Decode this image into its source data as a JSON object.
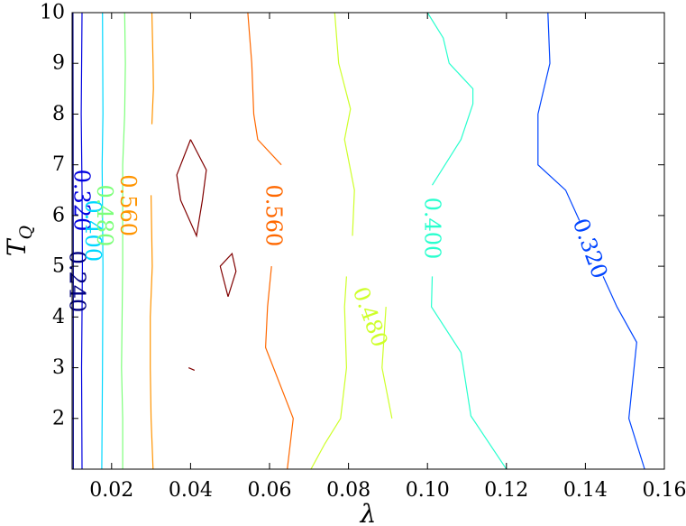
{
  "chart_data": {
    "type": "contour",
    "xlabel": "λ",
    "ylabel": "T",
    "ylabel_sub": "Q",
    "xlim": [
      0.01,
      0.16
    ],
    "ylim": [
      1,
      10
    ],
    "x_ticks": [
      {
        "value": 0.02,
        "label": "0.02"
      },
      {
        "value": 0.04,
        "label": "0.04"
      },
      {
        "value": 0.06,
        "label": "0.06"
      },
      {
        "value": 0.08,
        "label": "0.08"
      },
      {
        "value": 0.1,
        "label": "0.10"
      },
      {
        "value": 0.12,
        "label": "0.12"
      },
      {
        "value": 0.14,
        "label": "0.14"
      },
      {
        "value": 0.16,
        "label": "0.16"
      }
    ],
    "y_ticks": [
      {
        "value": 2,
        "label": "2"
      },
      {
        "value": 3,
        "label": "3"
      },
      {
        "value": 4,
        "label": "4"
      },
      {
        "value": 5,
        "label": "5"
      },
      {
        "value": 6,
        "label": "6"
      },
      {
        "value": 7,
        "label": "7"
      },
      {
        "value": 8,
        "label": "8"
      },
      {
        "value": 9,
        "label": "9"
      },
      {
        "value": 10,
        "label": "10"
      }
    ],
    "contours": [
      {
        "level": "0.240",
        "color": "#000080",
        "lines": [
          [
            [
              0.0103,
              1
            ],
            [
              0.0103,
              5
            ],
            [
              0.0102,
              10
            ]
          ]
        ],
        "labels": [
          {
            "text": "0.240",
            "x": 0.0112,
            "y": 4.7,
            "angle": 90
          }
        ]
      },
      {
        "level": "0.320",
        "color": "#0000e0",
        "lines": [
          [
            [
              0.0125,
              1
            ],
            [
              0.0124,
              3
            ],
            [
              0.0126,
              5
            ],
            [
              0.0125,
              6.5
            ],
            [
              0.0123,
              8
            ],
            [
              0.0125,
              10
            ]
          ]
        ],
        "labels": [
          {
            "text": "0.320",
            "x": 0.0124,
            "y": 6.3,
            "angle": 90
          }
        ]
      },
      {
        "level": "0.320",
        "color": "#0044ff",
        "lines": [
          [
            [
              0.155,
              1
            ],
            [
              0.151,
              2
            ],
            [
              0.153,
              3.5
            ],
            [
              0.148,
              4.2
            ],
            [
              0.1445,
              4.8
            ]
          ],
          [
            [
              0.1385,
              5.9
            ],
            [
              0.135,
              6.5
            ],
            [
              0.128,
              7
            ],
            [
              0.128,
              8
            ],
            [
              0.1295,
              8.5
            ],
            [
              0.131,
              9
            ],
            [
              0.1305,
              10
            ]
          ]
        ],
        "labels": [
          {
            "text": "0.320",
            "x": 0.1412,
            "y": 5.35,
            "angle": 70
          }
        ]
      },
      {
        "level": "0.400",
        "color": "#00d8ff",
        "lines": [
          [
            [
              0.0175,
              1
            ],
            [
              0.0177,
              3
            ],
            [
              0.0178,
              5
            ],
            [
              0.0176,
              7
            ],
            [
              0.0178,
              8
            ],
            [
              0.0177,
              10
            ]
          ]
        ],
        "labels": [
          {
            "text": "0.400",
            "x": 0.0153,
            "y": 5.7,
            "angle": 90
          }
        ]
      },
      {
        "level": "0.400",
        "color": "#29ffce",
        "lines": [
          [
            [
              0.12,
              1
            ],
            [
              0.111,
              2.05
            ],
            [
              0.1085,
              3.3
            ],
            [
              0.101,
              4.2
            ],
            [
              0.1012,
              4.8
            ]
          ],
          [
            [
              0.1012,
              6.6
            ],
            [
              0.1085,
              7.5
            ],
            [
              0.1115,
              8.2
            ],
            [
              0.1115,
              8.5
            ],
            [
              0.1055,
              9
            ],
            [
              0.104,
              9.5
            ],
            [
              0.1,
              10
            ]
          ]
        ],
        "labels": [
          {
            "text": "0.400",
            "x": 0.1012,
            "y": 5.75,
            "angle": 90
          }
        ]
      },
      {
        "level": "0.480",
        "color": "#7dff7a",
        "lines": [
          [
            [
              0.0228,
              1
            ],
            [
              0.0228,
              2
            ],
            [
              0.0225,
              3
            ],
            [
              0.0228,
              5
            ],
            [
              0.0228,
              7
            ],
            [
              0.0233,
              8
            ],
            [
              0.0235,
              9
            ],
            [
              0.0233,
              10
            ]
          ]
        ],
        "labels": [
          {
            "text": "0.480",
            "x": 0.0182,
            "y": 6.0,
            "angle": 90
          }
        ]
      },
      {
        "level": "0.480",
        "color": "#ceff29",
        "lines": [
          [
            [
              0.0705,
              1
            ],
            [
              0.074,
              1.5
            ],
            [
              0.078,
              2
            ],
            [
              0.0795,
              3
            ],
            [
              0.079,
              4.2
            ],
            [
              0.0795,
              4.8
            ]
          ],
          [
            [
              0.081,
              5.6
            ],
            [
              0.0815,
              6.5
            ],
            [
              0.079,
              7.5
            ],
            [
              0.0805,
              8.1
            ],
            [
              0.0775,
              9
            ],
            [
              0.0765,
              10
            ]
          ],
          [
            [
              0.0895,
              4.2
            ],
            [
              0.0885,
              3
            ],
            [
              0.091,
              2
            ]
          ]
        ],
        "labels": [
          {
            "text": "0.480",
            "x": 0.0855,
            "y": 4.0,
            "angle": 70
          }
        ]
      },
      {
        "level": "0.560",
        "color": "#ff9400",
        "lines": [
          [
            [
              0.0305,
              1
            ],
            [
              0.03,
              2
            ],
            [
              0.0298,
              3
            ],
            [
              0.0298,
              4
            ],
            [
              0.0303,
              5
            ],
            [
              0.03,
              6.4
            ]
          ],
          [
            [
              0.0302,
              7.8
            ],
            [
              0.0306,
              8.5
            ],
            [
              0.0305,
              9
            ],
            [
              0.0302,
              10
            ]
          ]
        ],
        "labels": [
          {
            "text": "0.560",
            "x": 0.0242,
            "y": 6.2,
            "angle": 90
          }
        ]
      },
      {
        "level": "0.560",
        "color": "#ff6800",
        "lines": [
          [
            [
              0.0645,
              1
            ],
            [
              0.066,
              2
            ],
            [
              0.061,
              3
            ],
            [
              0.059,
              3.4
            ],
            [
              0.0595,
              4.2
            ],
            [
              0.0605,
              5
            ]
          ],
          [
            [
              0.063,
              7
            ],
            [
              0.057,
              7.5
            ],
            [
              0.056,
              8
            ],
            [
              0.0555,
              9
            ],
            [
              0.0545,
              10
            ]
          ]
        ],
        "labels": [
          {
            "text": "0.560",
            "x": 0.061,
            "y": 6.0,
            "angle": 90
          }
        ]
      },
      {
        "level": "",
        "color": "#800000",
        "lines": [
          [
            [
              0.04,
              7.5
            ],
            [
              0.0365,
              6.8
            ],
            [
              0.0375,
              6.3
            ],
            [
              0.0415,
              5.6
            ],
            [
              0.043,
              6.3
            ],
            [
              0.044,
              6.9
            ],
            [
              0.04,
              7.5
            ]
          ],
          [
            [
              0.0495,
              4.4
            ],
            [
              0.0475,
              5.0
            ],
            [
              0.0505,
              5.25
            ],
            [
              0.0515,
              4.9
            ],
            [
              0.0495,
              4.4
            ]
          ],
          [
            [
              0.0395,
              3.0
            ],
            [
              0.041,
              2.95
            ]
          ]
        ],
        "labels": []
      }
    ]
  }
}
